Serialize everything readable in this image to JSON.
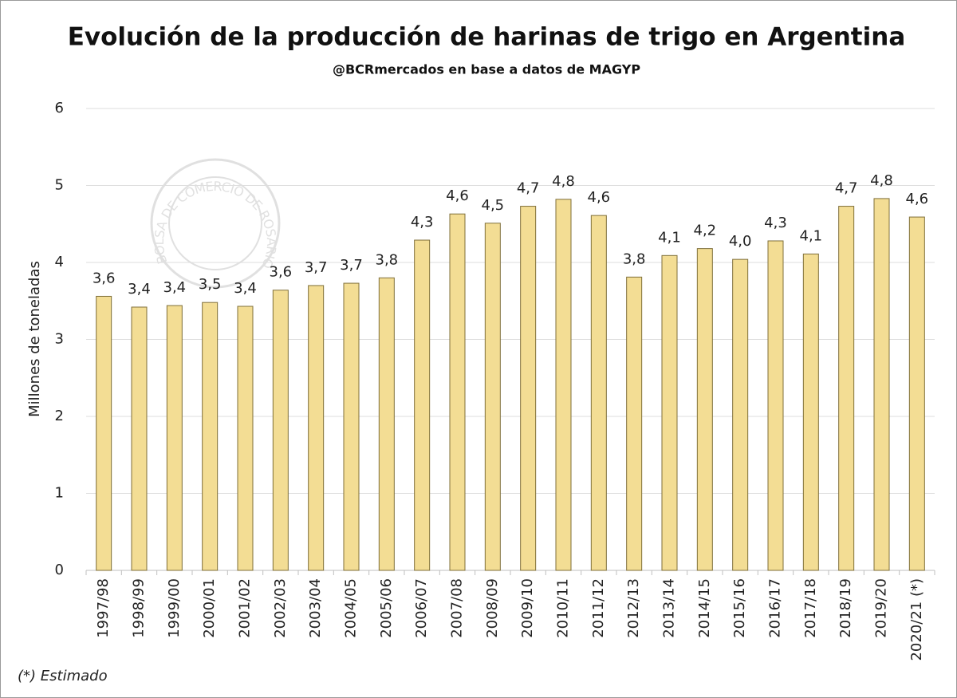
{
  "chart_data": {
    "type": "bar",
    "title": "Evolución de la producción de harinas de trigo en Argentina",
    "subtitle": "@BCRmercados en base a datos de MAGYP",
    "ylabel": "Millones de toneladas",
    "note": "(*) Estimado",
    "watermark": "BOLSA DE COMERCIO DE ROSARIO",
    "categories": [
      "1997/98",
      "1998/99",
      "1999/00",
      "2000/01",
      "2001/02",
      "2002/03",
      "2003/04",
      "2004/05",
      "2005/06",
      "2006/07",
      "2007/08",
      "2008/09",
      "2009/10",
      "2010/11",
      "2011/12",
      "2012/13",
      "2013/14",
      "2014/15",
      "2015/16",
      "2016/17",
      "2017/18",
      "2018/19",
      "2019/20",
      "2020/21 (*)"
    ],
    "values": [
      3.56,
      3.42,
      3.44,
      3.48,
      3.43,
      3.64,
      3.7,
      3.73,
      3.8,
      4.29,
      4.63,
      4.51,
      4.73,
      4.82,
      4.61,
      3.81,
      4.09,
      4.18,
      4.04,
      4.28,
      4.11,
      4.73,
      4.83,
      4.59
    ],
    "value_labels": [
      "3,6",
      "3,4",
      "3,4",
      "3,5",
      "3,4",
      "3,6",
      "3,7",
      "3,7",
      "3,8",
      "4,3",
      "4,6",
      "4,5",
      "4,7",
      "4,8",
      "4,6",
      "3,8",
      "4,1",
      "4,2",
      "4,0",
      "4,3",
      "4,1",
      "4,7",
      "4,8",
      "4,6"
    ],
    "color": "#f3dd94",
    "ylim": [
      0,
      6
    ],
    "yticks": [
      0,
      1,
      2,
      3,
      4,
      5,
      6
    ],
    "grid": true
  }
}
